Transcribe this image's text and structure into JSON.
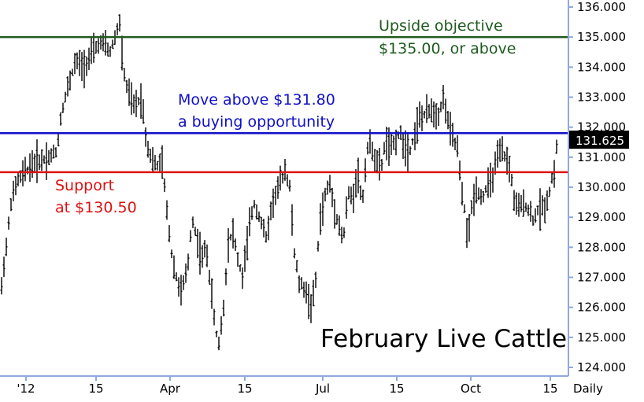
{
  "chart_data": {
    "type": "ohlc",
    "title": "February Live Cattle",
    "xlabel": "",
    "ylabel": "",
    "ylim": [
      124.0,
      136.0
    ],
    "y_ticks": [
      "136.000",
      "135.000",
      "134.000",
      "133.000",
      "132.000",
      "131.000",
      "130.000",
      "129.000",
      "128.000",
      "127.000",
      "126.000",
      "125.000",
      "124.000"
    ],
    "x_ticks": [
      "'12",
      "15",
      "Apr",
      "15",
      "Jul",
      "15",
      "Oct",
      "15"
    ],
    "x_period": "Daily",
    "current_price": "131.625",
    "current_value": 131.625,
    "levels": [
      {
        "value": 135.0,
        "color": "#1e5a1e",
        "label_lines": [
          "Upside objective",
          "$135.00, or above"
        ]
      },
      {
        "value": 131.8,
        "color": "#1010c8",
        "label_lines": [
          "Move above $131.80",
          "a buying opportunity"
        ]
      },
      {
        "value": 130.5,
        "color": "#dd1010",
        "label_lines": [
          "Support",
          "at $130.50"
        ]
      }
    ],
    "bar_color": "#000000",
    "axis_color": "#8fa8e0",
    "tag_color": "#000000",
    "series": [
      {
        "anchors": [
          [
            0,
            126.0
          ],
          [
            4,
            127.3
          ],
          [
            8,
            128.0
          ],
          [
            14,
            129.5
          ],
          [
            22,
            130.2
          ],
          [
            32,
            130.5
          ],
          [
            42,
            130.8
          ],
          [
            52,
            130.9
          ],
          [
            62,
            131.0
          ],
          [
            72,
            131.2
          ],
          [
            78,
            132.5
          ],
          [
            86,
            133.3
          ],
          [
            96,
            134.2
          ],
          [
            106,
            134.0
          ],
          [
            116,
            134.4
          ],
          [
            126,
            134.8
          ],
          [
            134,
            134.7
          ],
          [
            140,
            134.5
          ],
          [
            146,
            135.0
          ],
          [
            152,
            135.5
          ],
          [
            156,
            134.0
          ],
          [
            162,
            133.2
          ],
          [
            170,
            132.7
          ],
          [
            180,
            133.0
          ],
          [
            186,
            131.5
          ],
          [
            192,
            131.0
          ],
          [
            198,
            130.7
          ],
          [
            206,
            130.8
          ],
          [
            212,
            129.2
          ],
          [
            218,
            127.8
          ],
          [
            224,
            127.0
          ],
          [
            230,
            126.5
          ],
          [
            238,
            127.2
          ],
          [
            244,
            129.0
          ],
          [
            250,
            128.3
          ],
          [
            256,
            127.6
          ],
          [
            262,
            128.0
          ],
          [
            268,
            126.6
          ],
          [
            274,
            125.2
          ],
          [
            278,
            124.8
          ],
          [
            284,
            126.0
          ],
          [
            290,
            128.2
          ],
          [
            296,
            128.5
          ],
          [
            302,
            127.6
          ],
          [
            308,
            127.0
          ],
          [
            316,
            128.5
          ],
          [
            322,
            129.5
          ],
          [
            330,
            129.0
          ],
          [
            338,
            128.3
          ],
          [
            346,
            129.5
          ],
          [
            354,
            130.0
          ],
          [
            362,
            130.6
          ],
          [
            368,
            130.0
          ],
          [
            374,
            127.8
          ],
          [
            380,
            126.8
          ],
          [
            388,
            126.6
          ],
          [
            394,
            126.0
          ],
          [
            400,
            126.5
          ],
          [
            406,
            128.8
          ],
          [
            412,
            129.6
          ],
          [
            418,
            130.2
          ],
          [
            424,
            129.4
          ],
          [
            430,
            128.8
          ],
          [
            436,
            128.2
          ],
          [
            442,
            129.8
          ],
          [
            448,
            129.6
          ],
          [
            454,
            130.6
          ],
          [
            460,
            129.4
          ],
          [
            466,
            131.3
          ],
          [
            472,
            131.4
          ],
          [
            478,
            130.8
          ],
          [
            484,
            130.6
          ],
          [
            490,
            131.6
          ],
          [
            496,
            131.2
          ],
          [
            502,
            131.6
          ],
          [
            508,
            131.8
          ],
          [
            514,
            131.4
          ],
          [
            520,
            131.2
          ],
          [
            526,
            131.7
          ],
          [
            532,
            132.3
          ],
          [
            540,
            132.4
          ],
          [
            548,
            132.6
          ],
          [
            556,
            132.4
          ],
          [
            564,
            133.0
          ],
          [
            570,
            132.0
          ],
          [
            576,
            131.6
          ],
          [
            582,
            131.2
          ],
          [
            586,
            129.8
          ],
          [
            590,
            129.3
          ],
          [
            594,
            128.2
          ],
          [
            600,
            129.5
          ],
          [
            606,
            130.0
          ],
          [
            612,
            129.6
          ],
          [
            618,
            130.0
          ],
          [
            624,
            130.2
          ],
          [
            630,
            130.8
          ],
          [
            636,
            131.2
          ],
          [
            642,
            131.0
          ],
          [
            648,
            130.6
          ],
          [
            654,
            129.4
          ],
          [
            660,
            129.3
          ],
          [
            666,
            129.5
          ],
          [
            672,
            129.2
          ],
          [
            678,
            128.9
          ],
          [
            684,
            129.3
          ],
          [
            690,
            129.3
          ],
          [
            696,
            129.6
          ],
          [
            700,
            130.2
          ],
          [
            704,
            130.5
          ],
          [
            708,
            131.6
          ]
        ]
      }
    ]
  }
}
